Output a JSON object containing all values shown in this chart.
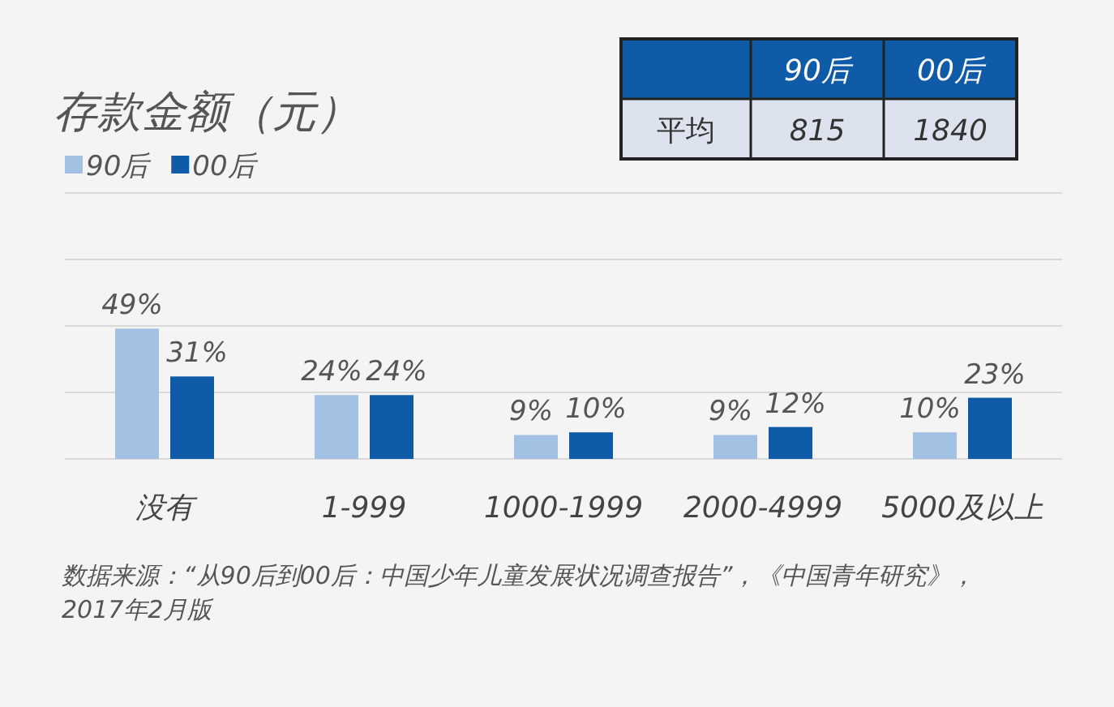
{
  "chart_data": [
    {
      "type": "bar",
      "title": "存款金额（元）",
      "categories": [
        "没有",
        "1-999",
        "1000-1999",
        "2000-4999",
        "5000及以上"
      ],
      "series": [
        {
          "name": "90后",
          "color": "#a3c1e2",
          "values": [
            49,
            24,
            9,
            9,
            10
          ],
          "value_labels": [
            "49%",
            "24%",
            "9%",
            "9%",
            "10%"
          ]
        },
        {
          "name": "00后",
          "color": "#0f5ba7",
          "values": [
            31,
            24,
            10,
            12,
            23
          ],
          "value_labels": [
            "31%",
            "24%",
            "10%",
            "12%",
            "23%"
          ]
        }
      ],
      "ylim": [
        0,
        100
      ],
      "yticks": [
        {
          "value": 25,
          "label": null
        },
        {
          "value": 50,
          "label": null
        },
        {
          "value": 75,
          "label": null
        },
        {
          "value": 100,
          "label": null
        }
      ],
      "grid": "y",
      "legend": "top left",
      "tick_labels": "x",
      "annotations": [
        "数据来源：“从90后到00后：中国少年儿童发展状况调查报告”，《中国青年研究》，2017年2月版"
      ]
    },
    {
      "type": "other",
      "categories": [
        "90后",
        "00后"
      ],
      "y_categories": [
        "平均"
      ],
      "values": [
        815,
        1840
      ],
      "data_labels": true
    }
  ]
}
